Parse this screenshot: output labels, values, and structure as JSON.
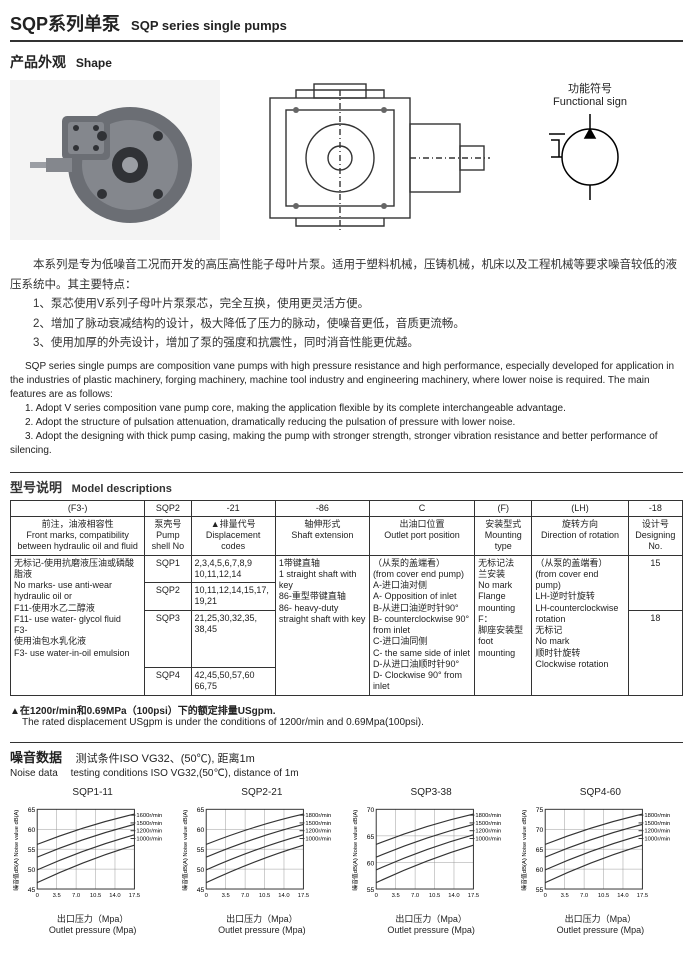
{
  "title_cn": "SQP系列单泵",
  "title_en": "SQP series single pumps",
  "shape_cn": "产品外观",
  "shape_en": "Shape",
  "func_cn": "功能符号",
  "func_en": "Functional sign",
  "desc_cn_p1": "本系列是专为低噪音工况而开发的高压高性能子母叶片泵。适用于塑料机械，压铸机械，机床以及工程机械等要求噪音较低的液压系统中。其主要特点：",
  "desc_cn_1": "1、泵芯使用V系列子母叶片泵泵芯，完全互换，使用更灵活方便。",
  "desc_cn_2": "2、增加了脉动衰减结构的设计，极大降低了压力的脉动，使噪音更低，音质更流畅。",
  "desc_cn_3": "3、使用加厚的外壳设计，增加了泵的强度和抗震性，同时消音性能更优越。",
  "desc_en_p1": "SQP series single pumps are composition vane pumps with high pressure resistance and high performance, especially developed for application in the industries of plastic machinery, forging machinery, machine tool industry and engineering machinery, where lower noise is required. The main features are as follows:",
  "desc_en_1": "1. Adopt V series composition vane pump core, making the application flexible by its complete interchangeable advantage.",
  "desc_en_2": "2. Adopt the structure of pulsation attenuation, dramatically reducing the pulsation of pressure with lower noise.",
  "desc_en_3": "3. Adopt the designing with thick pump casing, making the pump with stronger strength, stronger vibration resistance and better performance of silencing.",
  "model_cn": "型号说明",
  "model_en": "Model descriptions",
  "table": {
    "head": [
      "(F3-)",
      "SQP2",
      "-21",
      "-86",
      "C",
      "(F)",
      "(LH)",
      "-18"
    ],
    "sub": [
      "前注，油液相容性\nFront marks, compatibility between hydraulic oil and fluid",
      "泵壳号\nPump shell No",
      "▲排量代号\nDisplacement codes",
      "轴伸形式\nShaft extension",
      "出油口位置\nOutlet port position",
      "安装型式\nMounting type",
      "旋转方向\nDirection of rotation",
      "设计号\nDesigning No."
    ],
    "col0": "无标记-使用抗磨液压油或磷酸脂液\nNo marks- use anti-wear hydraulic oil or\nF11-使用水乙二醇液\nF11- use water- glycol fluid\nF3-\n使用油包水乳化液\nF3- use water-in-oil emulsion",
    "col1": [
      "SQP1",
      "SQP2",
      "SQP3",
      "SQP4"
    ],
    "col2": [
      "2,3,4,5,6,7,8,9\n10,11,12,14",
      "10,11,12,14,15,17,\n19,21",
      "21,25,30,32,35,\n38,45",
      "42,45,50,57,60\n66,75"
    ],
    "col3": "1带键直轴\n1 straight shaft with key\n86-重型带键直轴\n86- heavy-duty straight shaft with key",
    "col4": "（从泵的盖端看）\n(from cover end pump)\nA-进口油对侧\nA- Opposition of inlet\nB-从进口油逆时针90°\nB- counterclockwise 90° from inlet\nC-进口油同侧\nC- the same side of inlet\nD-从进口油顺时针90°\nD- Clockwise 90° from inlet",
    "col5": "无标记法\n兰安装\nNo mark\nFlange mounting\nF：\n脚座安装型\nfoot mounting",
    "col6": "（从泵的盖端看）\n(from cover end pump)\nLH-逆时针旋转\nLH-counterclockwise rotation\n无标记\nNo mark\n顺时针旋转\nClockwise rotation",
    "col7": [
      "15",
      "18"
    ]
  },
  "note_cn": "▲在1200r/min和0.69MPa（100psi）下的额定排量USgpm.",
  "note_en": "The rated displacement USgpm is under the conditions of 1200r/min and 0.69Mpa(100psi).",
  "noise_cn": "噪音数据",
  "noise_cond_cn": "测试条件ISO VG32、(50℃), 距离1m",
  "noise_en": "Noise data",
  "noise_cond_en": "testing conditions ISO VG32,(50℃), distance of 1m",
  "charts": [
    {
      "title": "SQP1-11",
      "ylo": 45,
      "yhi": 65,
      "ystep": 5,
      "legends": [
        "1600r/min",
        "1500r/min",
        "1200r/min",
        "1000r/min"
      ]
    },
    {
      "title": "SQP2-21",
      "ylo": 45,
      "yhi": 65,
      "ystep": 5,
      "legends": [
        "1800r/min",
        "1500r/min",
        "1200r/min",
        "1000r/min"
      ]
    },
    {
      "title": "SQP3-38",
      "ylo": 55,
      "yhi": 70,
      "ystep": 5,
      "legends": [
        "1800r/min",
        "1500r/min",
        "1200r/min",
        "1000r/min"
      ]
    },
    {
      "title": "SQP4-60",
      "ylo": 55,
      "yhi": 75,
      "ystep": 5,
      "legends": [
        "1800r/min",
        "1500r/min",
        "1200r/min",
        "1000r/min"
      ]
    }
  ],
  "xticks": [
    "0",
    "3.5",
    "7.0",
    "10.5",
    "14.0",
    "17.5"
  ],
  "xlabel_cn": "出口压力（Mpa）",
  "xlabel_en": "Outlet pressure (Mpa)",
  "ylabel_cn": "噪音值dB(A)",
  "ylabel_en": "Noise value dB(A)",
  "colors": {
    "line": "#333",
    "grid": "#888",
    "bg": "#fff"
  }
}
